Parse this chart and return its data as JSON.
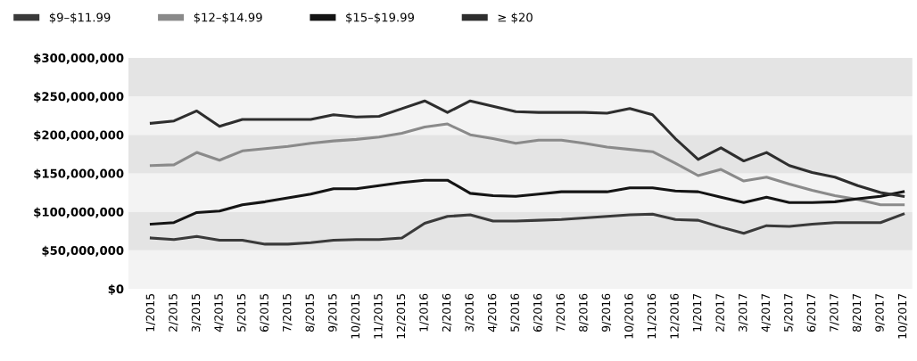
{
  "chart_data": {
    "type": "line",
    "categories": [
      "1/2015",
      "2/2015",
      "3/2015",
      "4/2015",
      "5/2015",
      "6/2015",
      "7/2015",
      "8/2015",
      "9/2015",
      "10/2015",
      "11/2015",
      "12/2015",
      "1/2016",
      "2/2016",
      "3/2016",
      "4/2016",
      "5/2016",
      "6/2016",
      "7/2016",
      "8/2016",
      "9/2016",
      "10/2016",
      "11/2016",
      "12/2016",
      "1/2017",
      "2/2017",
      "3/2017",
      "4/2017",
      "5/2017",
      "6/2017",
      "7/2017",
      "8/2017",
      "9/2017",
      "10/2017"
    ],
    "series": [
      {
        "name": "$9–$11.99",
        "color": "#3a3a3a",
        "values": [
          66000000,
          64000000,
          68000000,
          63000000,
          63000000,
          58000000,
          58000000,
          60000000,
          63000000,
          64000000,
          64000000,
          66000000,
          85000000,
          94000000,
          96000000,
          88000000,
          88000000,
          89000000,
          90000000,
          92000000,
          94000000,
          96000000,
          97000000,
          90000000,
          89000000,
          80000000,
          72000000,
          82000000,
          81000000,
          84000000,
          86000000,
          86000000,
          86000000,
          97000000
        ]
      },
      {
        "name": "$12–$14.99",
        "color": "#8a8a8a",
        "values": [
          160000000,
          161000000,
          177000000,
          167000000,
          179000000,
          182000000,
          185000000,
          189000000,
          192000000,
          194000000,
          197000000,
          202000000,
          210000000,
          214000000,
          200000000,
          195000000,
          189000000,
          193000000,
          193000000,
          189000000,
          184000000,
          181000000,
          178000000,
          163000000,
          147000000,
          155000000,
          140000000,
          145000000,
          136000000,
          128000000,
          121000000,
          116000000,
          109000000,
          109000000
        ]
      },
      {
        "name": "$15–$19.99",
        "color": "#141414",
        "values": [
          84000000,
          86000000,
          99000000,
          101000000,
          109000000,
          113000000,
          118000000,
          123000000,
          130000000,
          130000000,
          134000000,
          138000000,
          141000000,
          141000000,
          124000000,
          121000000,
          120000000,
          123000000,
          126000000,
          126000000,
          126000000,
          131000000,
          131000000,
          127000000,
          126000000,
          119000000,
          112000000,
          119000000,
          112000000,
          112000000,
          113000000,
          117000000,
          120000000,
          126000000
        ]
      },
      {
        "name": "≥ $20",
        "color": "#2e2e2e",
        "values": [
          215000000,
          218000000,
          231000000,
          211000000,
          220000000,
          220000000,
          220000000,
          220000000,
          226000000,
          223000000,
          224000000,
          234000000,
          244000000,
          229000000,
          244000000,
          237000000,
          230000000,
          229000000,
          229000000,
          229000000,
          228000000,
          234000000,
          226000000,
          195000000,
          168000000,
          183000000,
          166000000,
          177000000,
          160000000,
          151000000,
          145000000,
          134000000,
          125000000,
          120000000
        ]
      }
    ],
    "ylim": [
      0,
      300000000
    ],
    "yticks": [
      {
        "value": 0,
        "label": "$0"
      },
      {
        "value": 50000000,
        "label": "$50,000,000"
      },
      {
        "value": 100000000,
        "label": "$100,000,000"
      },
      {
        "value": 150000000,
        "label": "$150,000,000"
      },
      {
        "value": 200000000,
        "label": "$200,000,000"
      },
      {
        "value": 250000000,
        "label": "$250,000,000"
      },
      {
        "value": 300000000,
        "label": "$300,000,000"
      }
    ],
    "bands": [
      {
        "axis": "y",
        "from": 0,
        "to": 50000000,
        "color": "#f3f3f3"
      },
      {
        "axis": "y",
        "from": 50000000,
        "to": 100000000,
        "color": "#e4e4e4"
      },
      {
        "axis": "y",
        "from": 100000000,
        "to": 150000000,
        "color": "#f3f3f3"
      },
      {
        "axis": "y",
        "from": 150000000,
        "to": 200000000,
        "color": "#e4e4e4"
      },
      {
        "axis": "y",
        "from": 200000000,
        "to": 250000000,
        "color": "#f3f3f3"
      },
      {
        "axis": "y",
        "from": 250000000,
        "to": 300000000,
        "color": "#e4e4e4"
      }
    ],
    "legend": "top left",
    "grid": false,
    "marker": "none",
    "line_style": "solid"
  }
}
